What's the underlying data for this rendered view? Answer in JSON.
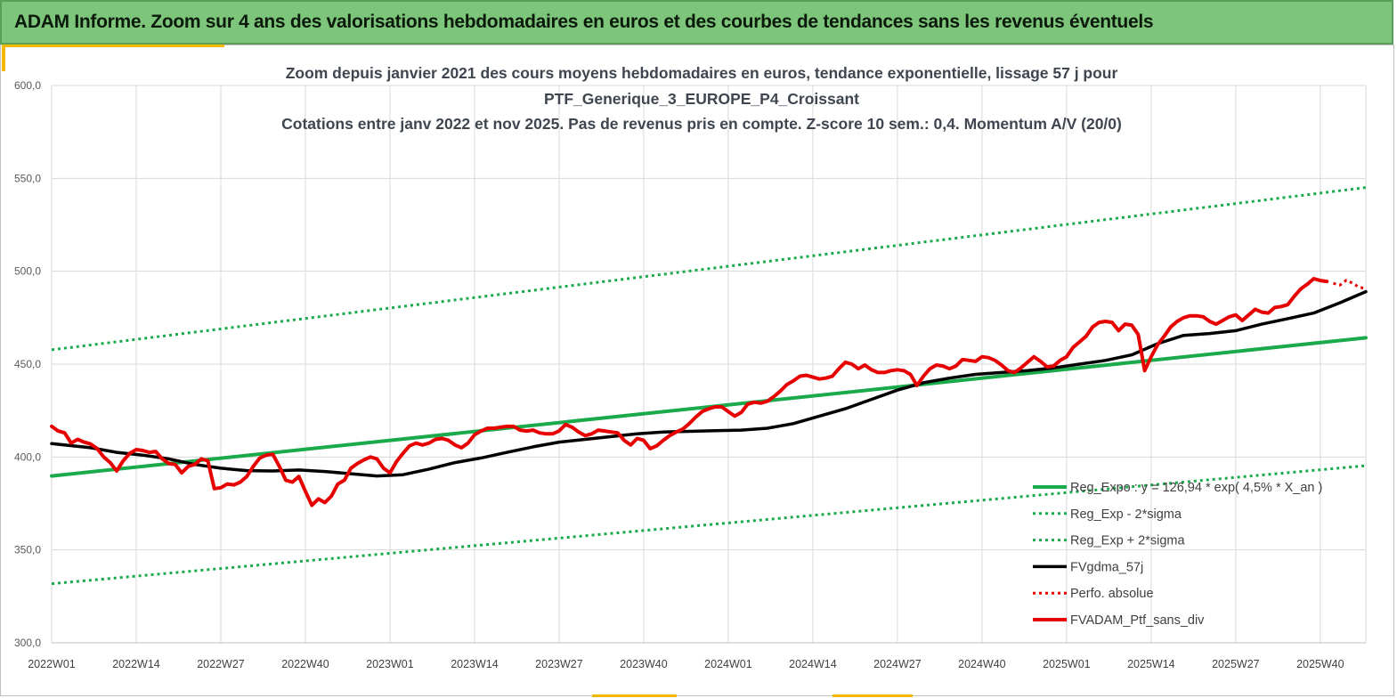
{
  "banner": {
    "title": "ADAM Informe. Zoom sur 4 ans des valorisations hebdomadaires en euros et des courbes de tendances sans les revenus éventuels"
  },
  "chart_data": {
    "type": "line",
    "title": [
      "Zoom depuis janvier 2021 des cours moyens hebdomadaires  en euros, tendance exponentielle, lissage 57 j pour",
      "PTF_Generique_3_EUROPE_P4_Croissant",
      "Cotations  entre janv 2022 et nov 2025. Pas de revenus pris en compte. Z-score 10 sem.: 0,4. Momentum A/V (20/0)"
    ],
    "xlabel": "",
    "ylabel": "",
    "ylim": [
      300,
      600
    ],
    "xlim": [
      0,
      202
    ],
    "grid": true,
    "y_ticks": [
      "300,0",
      "350,0",
      "400,0",
      "450,0",
      "500,0",
      "550,0",
      "600,0"
    ],
    "x_ticks": [
      "2022W01",
      "2022W14",
      "2022W27",
      "2022W40",
      "2023W01",
      "2023W14",
      "2023W27",
      "2023W40",
      "2024W01",
      "2024W14",
      "2024W27",
      "2024W40",
      "2025W01",
      "2025W14",
      "2025W27",
      "2025W40"
    ],
    "series": [
      {
        "name": "Reg_Expo : y = 126,94 * exp( 4,5% *  X_an )",
        "color": "#1aaa4b",
        "style": "solid",
        "points": [
          [
            0,
            389.8
          ],
          [
            202,
            464.2
          ]
        ]
      },
      {
        "name": "Reg_Exp - 2*sigma",
        "color": "#1aaa4b",
        "style": "dotted",
        "points": [
          [
            0,
            331.8
          ],
          [
            202,
            395.3
          ]
        ]
      },
      {
        "name": "Reg_Exp + 2*sigma",
        "color": "#1aaa4b",
        "style": "dotted",
        "points": [
          [
            0,
            457.7
          ],
          [
            202,
            545.1
          ]
        ]
      },
      {
        "name": "FVgdma_57j",
        "color": "#000000",
        "style": "solid",
        "points": [
          [
            0,
            407.2
          ],
          [
            6,
            405
          ],
          [
            10,
            402.5
          ],
          [
            14,
            401
          ],
          [
            18,
            399
          ],
          [
            22,
            396
          ],
          [
            26,
            394
          ],
          [
            30,
            392.7
          ],
          [
            34,
            392.5
          ],
          [
            38,
            393
          ],
          [
            42,
            392.2
          ],
          [
            46,
            391
          ],
          [
            50,
            389.8
          ],
          [
            54,
            390.5
          ],
          [
            58,
            393.5
          ],
          [
            62,
            397
          ],
          [
            66,
            399.5
          ],
          [
            70,
            402.5
          ],
          [
            74,
            405.5
          ],
          [
            78,
            408
          ],
          [
            82,
            409.5
          ],
          [
            86,
            411
          ],
          [
            90,
            412.5
          ],
          [
            94,
            413.5
          ],
          [
            98,
            413.8
          ],
          [
            102,
            414.2
          ],
          [
            106,
            414.5
          ],
          [
            110,
            415.5
          ],
          [
            114,
            418
          ],
          [
            118,
            422
          ],
          [
            122,
            426
          ],
          [
            126,
            431
          ],
          [
            130,
            436
          ],
          [
            134,
            440
          ],
          [
            138,
            442.5
          ],
          [
            142,
            444.5
          ],
          [
            146,
            445.5
          ],
          [
            150,
            446.5
          ],
          [
            154,
            448
          ],
          [
            158,
            450
          ],
          [
            162,
            452
          ],
          [
            166,
            455
          ],
          [
            170,
            461
          ],
          [
            174,
            465.5
          ],
          [
            178,
            466.5
          ],
          [
            182,
            468
          ],
          [
            186,
            471.5
          ],
          [
            190,
            474.5
          ],
          [
            194,
            477.5
          ],
          [
            198,
            483
          ],
          [
            202,
            489
          ]
        ]
      },
      {
        "name": "Perfo. absolue",
        "color": "#e60000",
        "style": "dotted",
        "points": [
          [
            197,
            493.5
          ],
          [
            198,
            492.5
          ],
          [
            199,
            495.2
          ],
          [
            200,
            493.5
          ],
          [
            201,
            491.3
          ],
          [
            202,
            490.8
          ]
        ]
      },
      {
        "name": "FVADAM_Ptf_sans_div",
        "color": "#e60000",
        "style": "solid",
        "points": [
          [
            0,
            416.5
          ],
          [
            1,
            414
          ],
          [
            2,
            413
          ],
          [
            3,
            407.5
          ],
          [
            4,
            409.5
          ],
          [
            5,
            408
          ],
          [
            6,
            407
          ],
          [
            7,
            404.5
          ],
          [
            8,
            400
          ],
          [
            9,
            397
          ],
          [
            10,
            392.5
          ],
          [
            11,
            398
          ],
          [
            12,
            402
          ],
          [
            13,
            404
          ],
          [
            14,
            403.5
          ],
          [
            15,
            402.5
          ],
          [
            16,
            403
          ],
          [
            17,
            399
          ],
          [
            18,
            396.5
          ],
          [
            19,
            396
          ],
          [
            20,
            391.5
          ],
          [
            21,
            395
          ],
          [
            22,
            396
          ],
          [
            23,
            399
          ],
          [
            24,
            398
          ],
          [
            25,
            383
          ],
          [
            26,
            383.5
          ],
          [
            27,
            385.5
          ],
          [
            28,
            385
          ],
          [
            29,
            386.5
          ],
          [
            30,
            389.5
          ],
          [
            31,
            395
          ],
          [
            32,
            399.5
          ],
          [
            33,
            401
          ],
          [
            34,
            401.5
          ],
          [
            35,
            395
          ],
          [
            36,
            387.5
          ],
          [
            37,
            386.5
          ],
          [
            38,
            389.5
          ],
          [
            39,
            381.5
          ],
          [
            40,
            374
          ],
          [
            41,
            377.5
          ],
          [
            42,
            375.5
          ],
          [
            43,
            379
          ],
          [
            44,
            385.5
          ],
          [
            45,
            387.5
          ],
          [
            46,
            394
          ],
          [
            47,
            396.5
          ],
          [
            48,
            398.5
          ],
          [
            49,
            400
          ],
          [
            50,
            399
          ],
          [
            51,
            394
          ],
          [
            52,
            391.5
          ],
          [
            53,
            397.5
          ],
          [
            54,
            402
          ],
          [
            55,
            406
          ],
          [
            56,
            407.5
          ],
          [
            57,
            406.5
          ],
          [
            58,
            407.5
          ],
          [
            59,
            409.5
          ],
          [
            60,
            410
          ],
          [
            61,
            409
          ],
          [
            62,
            406.5
          ],
          [
            63,
            405
          ],
          [
            64,
            407.5
          ],
          [
            65,
            412
          ],
          [
            66,
            414
          ],
          [
            67,
            415.5
          ],
          [
            68,
            415.5
          ],
          [
            69,
            416
          ],
          [
            70,
            416.5
          ],
          [
            71,
            416.5
          ],
          [
            72,
            414.5
          ],
          [
            73,
            414
          ],
          [
            74,
            414.5
          ],
          [
            75,
            413
          ],
          [
            76,
            412.5
          ],
          [
            77,
            412.5
          ],
          [
            78,
            414
          ],
          [
            79,
            417.5
          ],
          [
            80,
            416
          ],
          [
            81,
            413.5
          ],
          [
            82,
            411.5
          ],
          [
            83,
            412.5
          ],
          [
            84,
            414.5
          ],
          [
            85,
            414
          ],
          [
            86,
            413.5
          ],
          [
            87,
            413
          ],
          [
            88,
            409
          ],
          [
            89,
            406.5
          ],
          [
            90,
            410
          ],
          [
            91,
            409
          ],
          [
            92,
            404.5
          ],
          [
            93,
            406
          ],
          [
            94,
            409
          ],
          [
            95,
            411.5
          ],
          [
            96,
            413.5
          ],
          [
            97,
            415
          ],
          [
            98,
            418
          ],
          [
            99,
            421.5
          ],
          [
            100,
            424.5
          ],
          [
            101,
            426
          ],
          [
            102,
            427
          ],
          [
            103,
            427
          ],
          [
            104,
            424.5
          ],
          [
            105,
            422
          ],
          [
            106,
            424
          ],
          [
            107,
            428.5
          ],
          [
            108,
            429.5
          ],
          [
            109,
            429
          ],
          [
            110,
            430
          ],
          [
            111,
            432.5
          ],
          [
            112,
            435.5
          ],
          [
            113,
            439
          ],
          [
            114,
            441
          ],
          [
            115,
            443.5
          ],
          [
            116,
            444
          ],
          [
            117,
            443
          ],
          [
            118,
            442
          ],
          [
            119,
            442.5
          ],
          [
            120,
            443.5
          ],
          [
            121,
            447.5
          ],
          [
            122,
            451
          ],
          [
            123,
            450
          ],
          [
            124,
            447.5
          ],
          [
            125,
            449.5
          ],
          [
            126,
            447
          ],
          [
            127,
            445.5
          ],
          [
            128,
            445.5
          ],
          [
            129,
            446.5
          ],
          [
            130,
            447
          ],
          [
            131,
            446.5
          ],
          [
            132,
            444.5
          ],
          [
            133,
            438.5
          ],
          [
            134,
            443.5
          ],
          [
            135,
            447.5
          ],
          [
            136,
            449.5
          ],
          [
            137,
            449
          ],
          [
            138,
            447.5
          ],
          [
            139,
            449
          ],
          [
            140,
            452.5
          ],
          [
            141,
            452
          ],
          [
            142,
            451.5
          ],
          [
            143,
            454
          ],
          [
            144,
            453.5
          ],
          [
            145,
            452
          ],
          [
            146,
            449.5
          ],
          [
            147,
            446.5
          ],
          [
            148,
            445.5
          ],
          [
            149,
            448
          ],
          [
            150,
            451
          ],
          [
            151,
            454
          ],
          [
            152,
            451.5
          ],
          [
            153,
            448.5
          ],
          [
            154,
            449
          ],
          [
            155,
            452
          ],
          [
            156,
            454
          ],
          [
            157,
            459
          ],
          [
            158,
            462
          ],
          [
            159,
            465
          ],
          [
            160,
            470
          ],
          [
            161,
            472.5
          ],
          [
            162,
            473
          ],
          [
            163,
            472.5
          ],
          [
            164,
            468
          ],
          [
            165,
            471.5
          ],
          [
            166,
            471
          ],
          [
            167,
            466
          ],
          [
            168,
            446.5
          ],
          [
            169,
            454
          ],
          [
            170,
            460.5
          ],
          [
            171,
            465
          ],
          [
            172,
            470
          ],
          [
            173,
            473
          ],
          [
            174,
            475
          ],
          [
            175,
            476
          ],
          [
            176,
            476
          ],
          [
            177,
            475.5
          ],
          [
            178,
            473
          ],
          [
            179,
            471.5
          ],
          [
            180,
            473.5
          ],
          [
            181,
            475.5
          ],
          [
            182,
            476.5
          ],
          [
            183,
            473.5
          ],
          [
            184,
            476.5
          ],
          [
            185,
            479.5
          ],
          [
            186,
            478
          ],
          [
            187,
            477.5
          ],
          [
            188,
            480.5
          ],
          [
            189,
            481
          ],
          [
            190,
            482
          ],
          [
            191,
            486.5
          ],
          [
            192,
            490.5
          ],
          [
            193,
            493
          ],
          [
            194,
            496
          ],
          [
            195,
            495
          ],
          [
            196,
            494.5
          ]
        ]
      }
    ],
    "legend": {
      "position": "bottom-right",
      "entries": [
        "Reg_Expo : y = 126,94 * exp( 4,5% *  X_an )",
        "Reg_Exp - 2*sigma",
        "Reg_Exp + 2*sigma",
        "FVgdma_57j",
        "Perfo. absolue",
        "FVADAM_Ptf_sans_div"
      ]
    }
  }
}
